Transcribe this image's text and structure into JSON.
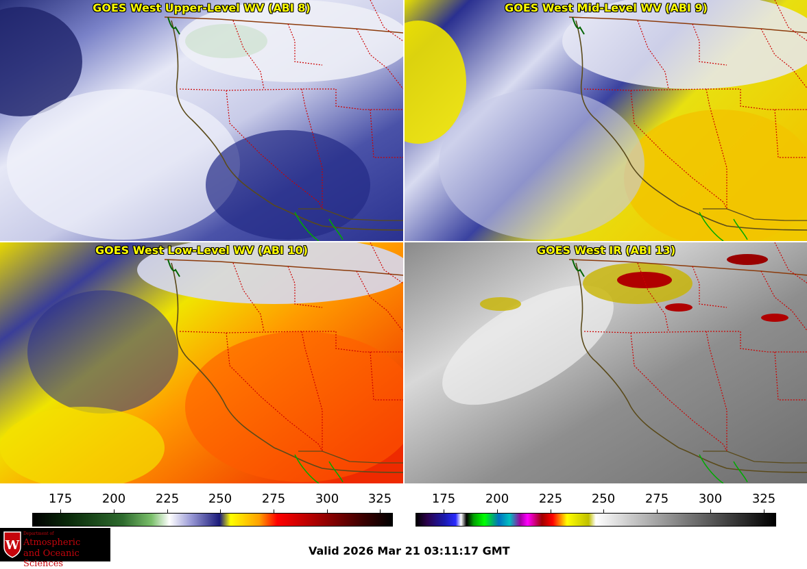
{
  "panels": [
    {
      "title": "GOES West Upper-Level WV (ABI 8)"
    },
    {
      "title": "GOES West Mid-Level WV (ABI 9)"
    },
    {
      "title": "GOES West Low-Level WV (ABI 10)"
    },
    {
      "title": "GOES West IR (ABI 13)"
    }
  ],
  "colorbars": {
    "left": {
      "ticks": [
        "175",
        "200",
        "225",
        "250",
        "275",
        "300",
        "325"
      ]
    },
    "right": {
      "ticks": [
        "175",
        "200",
        "225",
        "250",
        "275",
        "300",
        "325"
      ]
    }
  },
  "logo": {
    "line1": "Department of",
    "line2": "Atmospheric",
    "line3": "and Oceanic Sciences",
    "emblem": "W"
  },
  "valid_time": "Valid 2026 Mar 21 03:11:17 GMT",
  "colors": {
    "title_text": "#ffff00",
    "border_line": "#cc0000",
    "coast_line": "#5a4a1a",
    "mexico_border": "#00aa00"
  }
}
